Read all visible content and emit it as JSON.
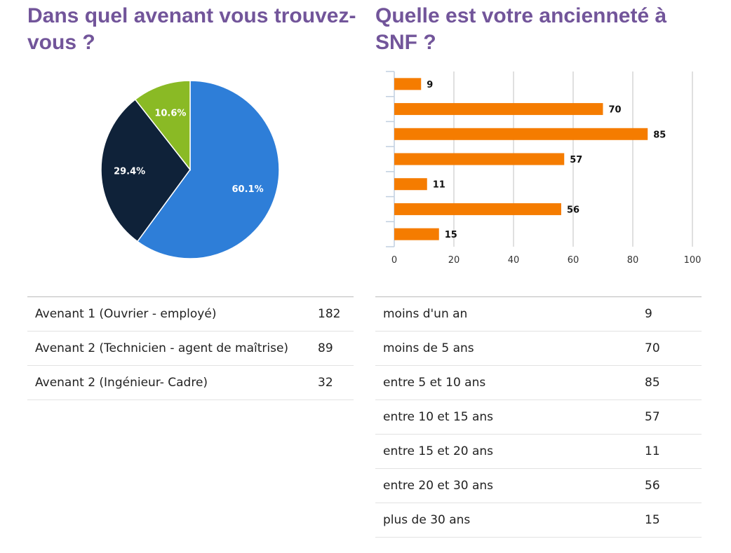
{
  "chart_data": [
    {
      "type": "pie",
      "title": "Dans quel avenant vous trouvez-vous ?",
      "slices": [
        {
          "label": "Avenant 1 (Ouvrier - employé)",
          "value": 182,
          "percent_label": "60.1%",
          "color": "#2e7ed8"
        },
        {
          "label": "Avenant 2 (Technicien - agent de maîtrise)",
          "value": 89,
          "percent_label": "29.4%",
          "color": "#0f2239"
        },
        {
          "label": "Avenant 2 (Ingénieur- Cadre)",
          "value": 32,
          "percent_label": "10.6%",
          "color": "#8aba25"
        }
      ]
    },
    {
      "type": "bar",
      "orientation": "horizontal",
      "title": "Quelle est votre ancienneté à SNF ?",
      "categories": [
        "moins d'un an",
        "moins de 5 ans",
        "entre 5 et 10 ans",
        "entre 10 et 15 ans",
        "entre 15 et 20 ans",
        "entre 20 et 30 ans",
        "plus de 30 ans"
      ],
      "values": [
        9,
        70,
        85,
        57,
        11,
        56,
        15
      ],
      "xlim": [
        0,
        100
      ],
      "xticks": [
        "0",
        "20",
        "40",
        "60",
        "80",
        "100"
      ],
      "grid": true,
      "color": "#f57c00"
    }
  ],
  "tables": {
    "left": [
      [
        "Avenant 1 (Ouvrier - employé)",
        "182"
      ],
      [
        "Avenant 2 (Technicien - agent de maîtrise)",
        "89"
      ],
      [
        "Avenant 2 (Ingénieur- Cadre)",
        "32"
      ]
    ],
    "right": [
      [
        "moins d'un an",
        "9"
      ],
      [
        "moins de 5 ans",
        "70"
      ],
      [
        "entre 5 et 10 ans",
        "85"
      ],
      [
        "entre 10 et 15 ans",
        "57"
      ],
      [
        "entre 15 et 20 ans",
        "11"
      ],
      [
        "entre 20 et 30 ans",
        "56"
      ],
      [
        "plus de 30 ans",
        "15"
      ]
    ]
  }
}
